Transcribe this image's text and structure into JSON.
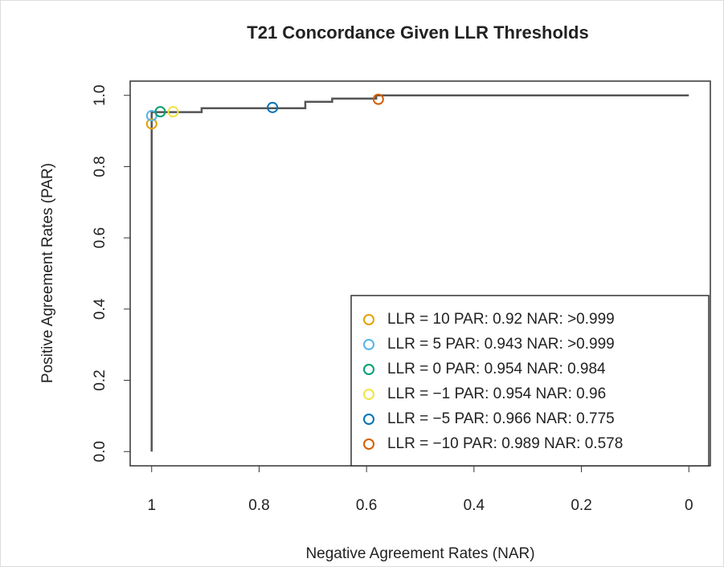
{
  "chart_data": {
    "type": "line",
    "title": "T21 Concordance Given LLR Thresholds",
    "x_label": "Negative Agreement Rates (NAR)",
    "y_label": "Positive Agreement Rates (PAR)",
    "xlim": [
      1.04,
      -0.04
    ],
    "ylim": [
      -0.04,
      1.04
    ],
    "xticks": [
      1,
      0.8,
      0.6,
      0.4,
      0.2,
      0
    ],
    "yticks": [
      {
        "value": 0,
        "label": "0.0"
      },
      {
        "value": 0.2,
        "label": "0.2"
      },
      {
        "value": 0.4,
        "label": "0.4"
      },
      {
        "value": 0.6,
        "label": "0.6"
      },
      {
        "value": 0.8,
        "label": "0.8"
      },
      {
        "value": 1,
        "label": "1.0"
      }
    ],
    "line": {
      "color": "#555555",
      "x": [
        1,
        1,
        0.907,
        0.907,
        0.714,
        0.714,
        0.664,
        0.664,
        0.582,
        0.582,
        0
      ],
      "y": [
        0,
        0.953,
        0.953,
        0.964,
        0.964,
        0.982,
        0.982,
        0.991,
        0.991,
        1,
        1
      ]
    },
    "points": [
      {
        "name": "LLR = 10 PAR: 0.92 NAR: >0.999",
        "color": "#E69F00",
        "x": 1,
        "y": 0.92
      },
      {
        "name": "LLR = 5 PAR: 0.943 NAR: >0.999",
        "color": "#56B4E9",
        "x": 1,
        "y": 0.943
      },
      {
        "name": "LLR = 0 PAR: 0.954 NAR: 0.984",
        "color": "#009E73",
        "x": 0.984,
        "y": 0.954
      },
      {
        "name": "LLR = −1 PAR: 0.954 NAR: 0.96",
        "color": "#F0E442",
        "x": 0.96,
        "y": 0.954
      },
      {
        "name": "LLR = −5 PAR: 0.966 NAR: 0.775",
        "color": "#0072B2",
        "x": 0.775,
        "y": 0.966
      },
      {
        "name": "LLR = −10 PAR: 0.989 NAR: 0.578",
        "color": "#D55E00",
        "x": 0.578,
        "y": 0.989
      }
    ],
    "legend": "bottom-right"
  }
}
